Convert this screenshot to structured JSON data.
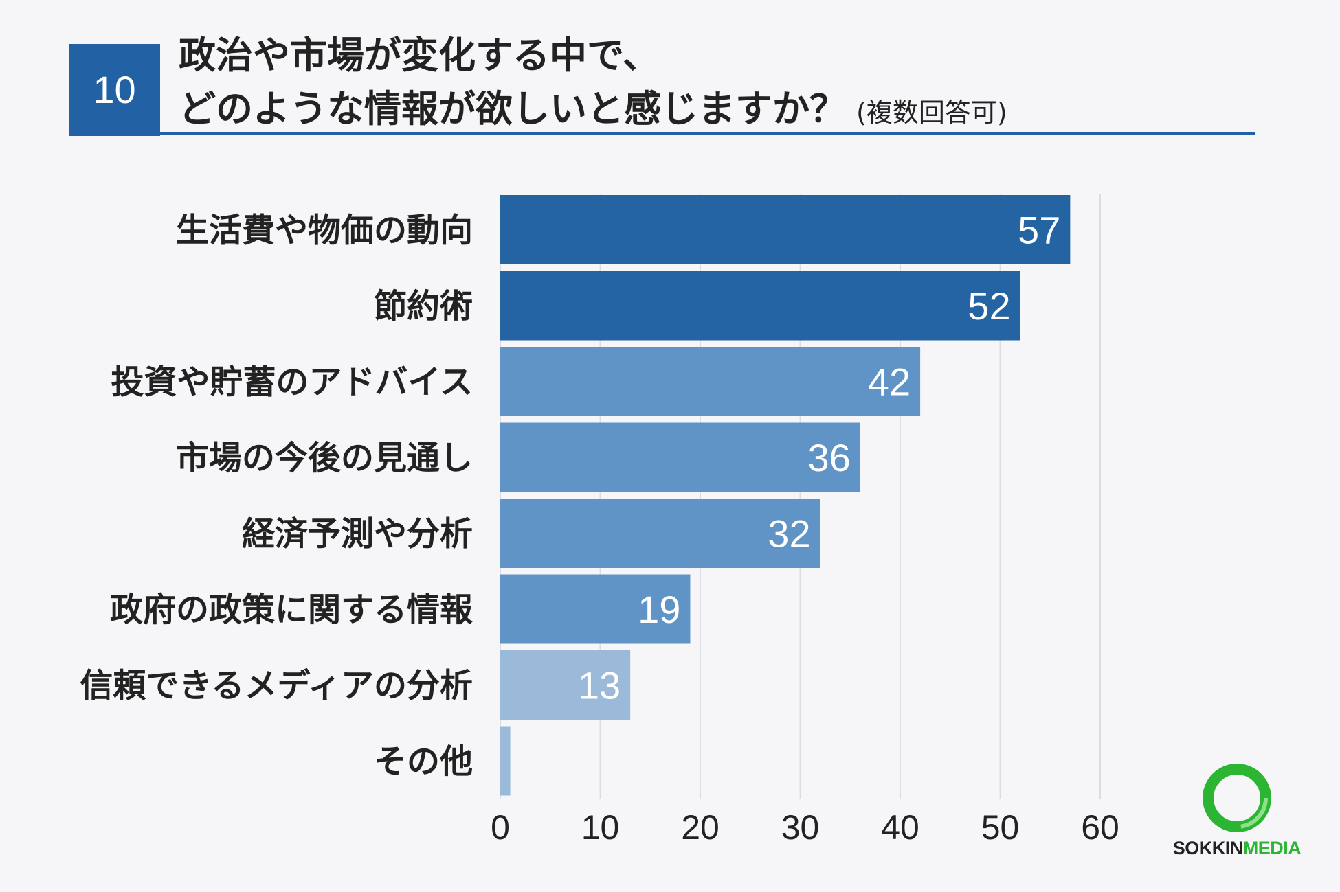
{
  "header": {
    "number": "10",
    "title_line1": "政治や市場が変化する中で、",
    "title_line2": "どのような情報が欲しいと感じますか？",
    "note": "(複数回答可)"
  },
  "chart_data": {
    "type": "bar",
    "orientation": "horizontal",
    "categories": [
      "生活費や物価の動向",
      "節約術",
      "投資や貯蓄のアドバイス",
      "市場の今後の見通し",
      "経済予測や分析",
      "政府の政策に関する情報",
      "信頼できるメディアの分析",
      "その他"
    ],
    "values": [
      57,
      52,
      42,
      36,
      32,
      19,
      13,
      1
    ],
    "data_labels": [
      "57",
      "52",
      "42",
      "36",
      "32",
      "19",
      "13",
      ""
    ],
    "colors": [
      "#2464a3",
      "#2464a3",
      "#6094c6",
      "#6094c6",
      "#6094c6",
      "#6094c6",
      "#9bbada",
      "#9bbada"
    ],
    "xlim": [
      0,
      60
    ],
    "xticks": [
      "0",
      "10",
      "20",
      "30",
      "40",
      "50",
      "60"
    ],
    "grid": true
  },
  "logo": {
    "part1": "SOKKIN",
    "part2": "MEDIA",
    "ring_color": "#2bb533"
  }
}
